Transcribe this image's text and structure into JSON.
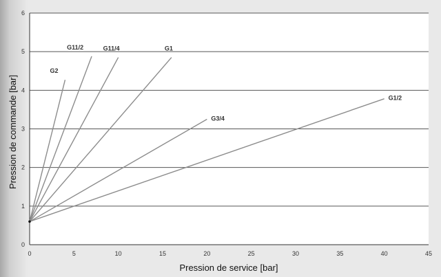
{
  "chart_data": {
    "type": "line",
    "xlabel": "Pression de service [bar]",
    "ylabel": "Pression de commande [bar]",
    "xlim": [
      0,
      45
    ],
    "ylim": [
      0,
      6
    ],
    "xticks": [
      0,
      5,
      10,
      15,
      20,
      25,
      30,
      35,
      40,
      45
    ],
    "yticks": [
      0,
      1,
      2,
      3,
      4,
      5,
      6
    ],
    "grid": "horizontal",
    "colors": {
      "series": "#8c8c8c",
      "grid": "#555555",
      "plot_bg": "#ffffff"
    },
    "series": [
      {
        "name": "G2",
        "x": [
          0,
          4
        ],
        "y": [
          0.6,
          4.27
        ]
      },
      {
        "name": "G11/2",
        "x": [
          0,
          7
        ],
        "y": [
          0.6,
          4.88
        ]
      },
      {
        "name": "G11/4",
        "x": [
          0,
          10
        ],
        "y": [
          0.6,
          4.85
        ]
      },
      {
        "name": "G1",
        "x": [
          0,
          16
        ],
        "y": [
          0.6,
          4.85
        ]
      },
      {
        "name": "G3/4",
        "x": [
          0,
          20
        ],
        "y": [
          0.6,
          3.25
        ]
      },
      {
        "name": "G1/2",
        "x": [
          0,
          40
        ],
        "y": [
          0.6,
          3.78
        ]
      }
    ]
  }
}
